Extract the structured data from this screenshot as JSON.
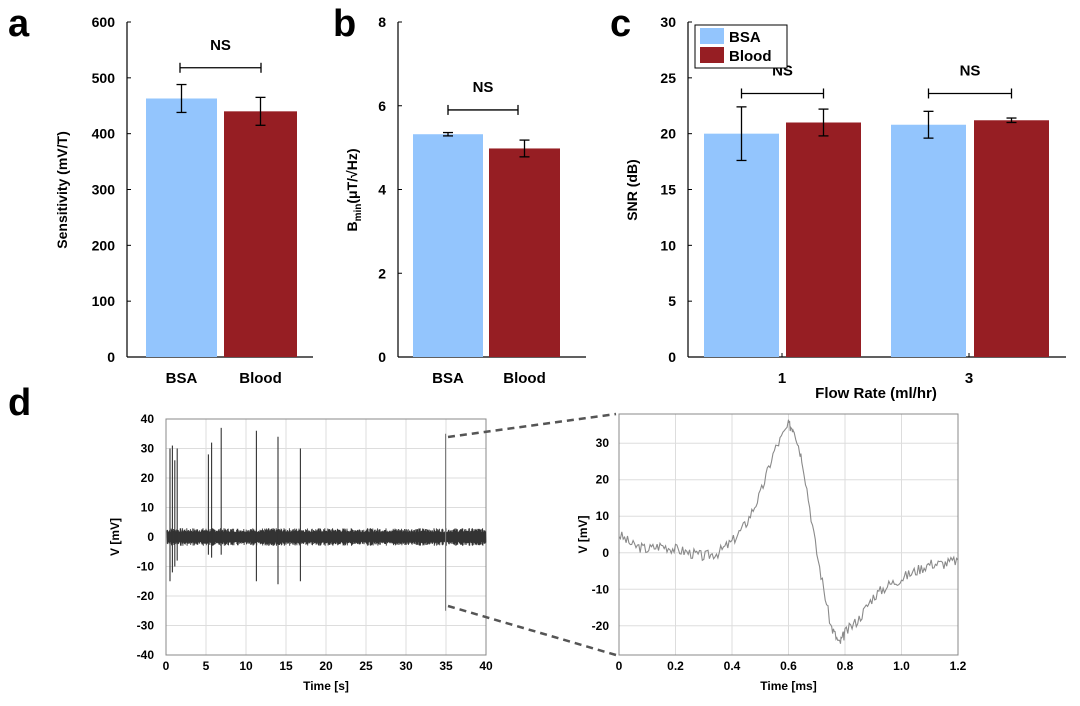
{
  "colors": {
    "bsa": "#93c5fd",
    "blood": "#961e23",
    "trace": "#333333",
    "zoomtrace": "#8a8a8a",
    "grid": "#dddddd"
  },
  "panel_letters": [
    "a",
    "b",
    "c",
    "d"
  ],
  "chart_data": [
    {
      "panel": "a",
      "type": "bar",
      "categories": [
        "BSA",
        "Blood"
      ],
      "values": [
        463,
        440
      ],
      "errors": [
        25,
        25
      ],
      "ylabel": "Sensitivity (mV/T)",
      "ylim": [
        0,
        600
      ],
      "yticks": [
        0,
        100,
        200,
        300,
        400,
        500,
        600
      ],
      "significance": {
        "label": "NS",
        "between": [
          0,
          1
        ],
        "y": 518
      }
    },
    {
      "panel": "b",
      "type": "bar",
      "categories": [
        "BSA",
        "Blood"
      ],
      "values": [
        5.32,
        4.98
      ],
      "errors": [
        0.04,
        0.2
      ],
      "ylabel_main": "B",
      "ylabel_sub": "min",
      "ylabel_rest": "(μT/√Hz)",
      "ylim": [
        0,
        8
      ],
      "yticks": [
        0,
        2,
        4,
        6,
        8
      ],
      "significance": {
        "label": "NS",
        "between": [
          0,
          1
        ],
        "y": 5.9
      }
    },
    {
      "panel": "c",
      "type": "bar",
      "categories": [
        "1",
        "3"
      ],
      "xlabel": "Flow Rate (ml/hr)",
      "ylabel": "SNR (dB)",
      "ylim": [
        0,
        30
      ],
      "yticks": [
        0,
        5,
        10,
        15,
        20,
        25,
        30
      ],
      "series": [
        {
          "name": "BSA",
          "values": [
            20.0,
            20.8
          ],
          "errors": [
            2.4,
            1.2
          ]
        },
        {
          "name": "Blood",
          "values": [
            21.0,
            21.2
          ],
          "errors": [
            1.2,
            0.2
          ]
        }
      ],
      "significance": [
        {
          "label": "NS",
          "group": 0,
          "y": 23.6
        },
        {
          "label": "NS",
          "group": 1,
          "y": 23.6
        }
      ]
    },
    {
      "panel": "d-left",
      "type": "line",
      "xlabel": "Time [s]",
      "ylabel": "V [mV]",
      "xlim": [
        0,
        40
      ],
      "ylim": [
        -40,
        40
      ],
      "xticks": [
        0,
        5,
        10,
        15,
        20,
        25,
        30,
        35,
        40
      ],
      "yticks": [
        -40,
        -30,
        -20,
        -10,
        0,
        10,
        20,
        30,
        40
      ],
      "noise_band": [
        -3,
        3
      ],
      "spikes": [
        {
          "t": 0.5,
          "peak": 30,
          "trough": -15
        },
        {
          "t": 0.8,
          "peak": 31,
          "trough": -12
        },
        {
          "t": 1.1,
          "peak": 26,
          "trough": -10
        },
        {
          "t": 1.4,
          "peak": 30,
          "trough": -8
        },
        {
          "t": 5.3,
          "peak": 28,
          "trough": -6
        },
        {
          "t": 5.7,
          "peak": 32,
          "trough": -7
        },
        {
          "t": 6.9,
          "peak": 37,
          "trough": -6
        },
        {
          "t": 11.3,
          "peak": 36,
          "trough": -15
        },
        {
          "t": 14.0,
          "peak": 34,
          "trough": -16
        },
        {
          "t": 16.8,
          "peak": 30,
          "trough": -15
        },
        {
          "t": 34.95,
          "peak": 35,
          "trough": -25
        }
      ]
    },
    {
      "panel": "d-right",
      "type": "line",
      "xlabel": "Time [ms]",
      "ylabel": "V [mV]",
      "xlim": [
        0,
        1.2
      ],
      "ylim": [
        -28,
        38
      ],
      "xticks": [
        0,
        0.2,
        0.4,
        0.6,
        0.8,
        1.0,
        1.2
      ],
      "xtick_labels": [
        "0",
        "0.2",
        "0.4",
        "0.6",
        "0.8",
        "1.0",
        "1.2"
      ],
      "yticks": [
        -20,
        -10,
        0,
        10,
        20,
        30
      ],
      "waveform": [
        [
          0.0,
          5
        ],
        [
          0.05,
          2
        ],
        [
          0.1,
          1
        ],
        [
          0.15,
          2
        ],
        [
          0.2,
          1
        ],
        [
          0.25,
          0
        ],
        [
          0.3,
          -1
        ],
        [
          0.35,
          0
        ],
        [
          0.4,
          3
        ],
        [
          0.45,
          8
        ],
        [
          0.5,
          16
        ],
        [
          0.55,
          28
        ],
        [
          0.6,
          35
        ],
        [
          0.62,
          34
        ],
        [
          0.65,
          25
        ],
        [
          0.7,
          0
        ],
        [
          0.75,
          -20
        ],
        [
          0.78,
          -25
        ],
        [
          0.8,
          -22
        ],
        [
          0.85,
          -18
        ],
        [
          0.9,
          -12
        ],
        [
          0.95,
          -9
        ],
        [
          1.0,
          -7
        ],
        [
          1.05,
          -5
        ],
        [
          1.1,
          -3
        ],
        [
          1.15,
          -3
        ],
        [
          1.2,
          -2
        ]
      ]
    }
  ]
}
